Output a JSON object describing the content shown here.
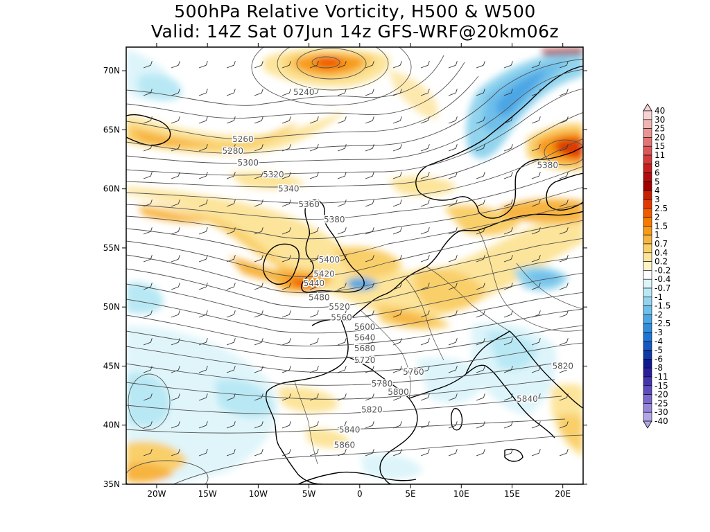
{
  "title_line1": "500hPa Relative Vorticity, H500 & W500",
  "title_line2": "Valid: 14Z Sat 07Jun 14z GFS-WRF@20km06z",
  "map": {
    "lon_range": [
      -23,
      22
    ],
    "lat_range": [
      35,
      72
    ],
    "lat_ticks": [
      {
        "lat": 70,
        "label": "70N"
      },
      {
        "lat": 65,
        "label": "65N"
      },
      {
        "lat": 60,
        "label": "60N"
      },
      {
        "lat": 55,
        "label": "55N"
      },
      {
        "lat": 50,
        "label": "50N"
      },
      {
        "lat": 45,
        "label": "45N"
      },
      {
        "lat": 40,
        "label": "40N"
      },
      {
        "lat": 35,
        "label": "35N"
      }
    ],
    "lon_ticks": [
      {
        "lon": -20,
        "label": "20W"
      },
      {
        "lon": -15,
        "label": "15W"
      },
      {
        "lon": -10,
        "label": "10W"
      },
      {
        "lon": -5,
        "label": "5W"
      },
      {
        "lon": 0,
        "label": "0"
      },
      {
        "lon": 5,
        "label": "5E"
      },
      {
        "lon": 10,
        "label": "10E"
      },
      {
        "lon": 15,
        "label": "15E"
      },
      {
        "lon": 20,
        "label": "20E"
      }
    ],
    "height_contours": [
      {
        "value": "5240",
        "lon": -5.5,
        "lat": 68.2
      },
      {
        "value": "5260",
        "lon": -11.5,
        "lat": 64.2
      },
      {
        "value": "5280",
        "lon": -12.5,
        "lat": 63.2
      },
      {
        "value": "5300",
        "lon": -11.0,
        "lat": 62.2
      },
      {
        "value": "5320",
        "lon": -8.5,
        "lat": 61.2
      },
      {
        "value": "5340",
        "lon": -7.0,
        "lat": 60.0
      },
      {
        "value": "5360",
        "lon": -5.0,
        "lat": 58.7
      },
      {
        "value": "5380",
        "lon": -2.5,
        "lat": 57.4
      },
      {
        "value": "5380",
        "lon": 18.5,
        "lat": 62.0
      },
      {
        "value": "5400",
        "lon": -3.0,
        "lat": 54.0
      },
      {
        "value": "5420",
        "lon": -3.5,
        "lat": 52.8
      },
      {
        "value": "5440",
        "lon": -4.5,
        "lat": 52.0
      },
      {
        "value": "5480",
        "lon": -4.0,
        "lat": 50.8
      },
      {
        "value": "5520",
        "lon": -2.0,
        "lat": 50.0
      },
      {
        "value": "5560",
        "lon": -1.8,
        "lat": 49.1
      },
      {
        "value": "5600",
        "lon": 0.5,
        "lat": 48.3
      },
      {
        "value": "5640",
        "lon": 0.5,
        "lat": 47.4
      },
      {
        "value": "5680",
        "lon": 0.5,
        "lat": 46.5
      },
      {
        "value": "5720",
        "lon": 0.5,
        "lat": 45.5
      },
      {
        "value": "5760",
        "lon": 5.3,
        "lat": 44.5
      },
      {
        "value": "5780",
        "lon": 2.2,
        "lat": 43.5
      },
      {
        "value": "5800",
        "lon": 3.8,
        "lat": 42.8
      },
      {
        "value": "5820",
        "lon": 1.2,
        "lat": 41.3
      },
      {
        "value": "5820",
        "lon": 20.0,
        "lat": 45.0
      },
      {
        "value": "5840",
        "lon": -1.0,
        "lat": 39.6
      },
      {
        "value": "5840",
        "lon": 16.5,
        "lat": 42.2
      },
      {
        "value": "5860",
        "lon": -1.5,
        "lat": 38.3
      }
    ]
  },
  "colorbar": {
    "labels": [
      "40",
      "30",
      "25",
      "20",
      "15",
      "11",
      "8",
      "6",
      "5",
      "4",
      "3",
      "2.5",
      "2",
      "1.5",
      "1",
      "0.7",
      "0.4",
      "0.2",
      "-0.2",
      "-0.4",
      "-0.7",
      "-1",
      "-1.5",
      "-2",
      "-2.5",
      "-3",
      "-4",
      "-5",
      "-6",
      "-8",
      "-11",
      "-15",
      "-20",
      "-25",
      "-30",
      "-40"
    ],
    "colors": [
      "#f7d2d2",
      "#f0b4b4",
      "#e99494",
      "#e37474",
      "#dc5858",
      "#d33c3c",
      "#c41e1e",
      "#b00c0c",
      "#a00000",
      "#c82000",
      "#e03a00",
      "#f05a00",
      "#f77a00",
      "#f79a18",
      "#f7b440",
      "#f9cf6a",
      "#fce49a",
      "#fdf2c8",
      "#ffffff",
      "#dcf4fa",
      "#b8e8f4",
      "#92d4ee",
      "#6ebfea",
      "#4ca6e4",
      "#318ddc",
      "#1e74d2",
      "#1658c0",
      "#0e3aa8",
      "#101890",
      "#2a1e9c",
      "#4434ac",
      "#5e4cbc",
      "#7a68cc",
      "#9686da",
      "#b2a6e6"
    ]
  }
}
